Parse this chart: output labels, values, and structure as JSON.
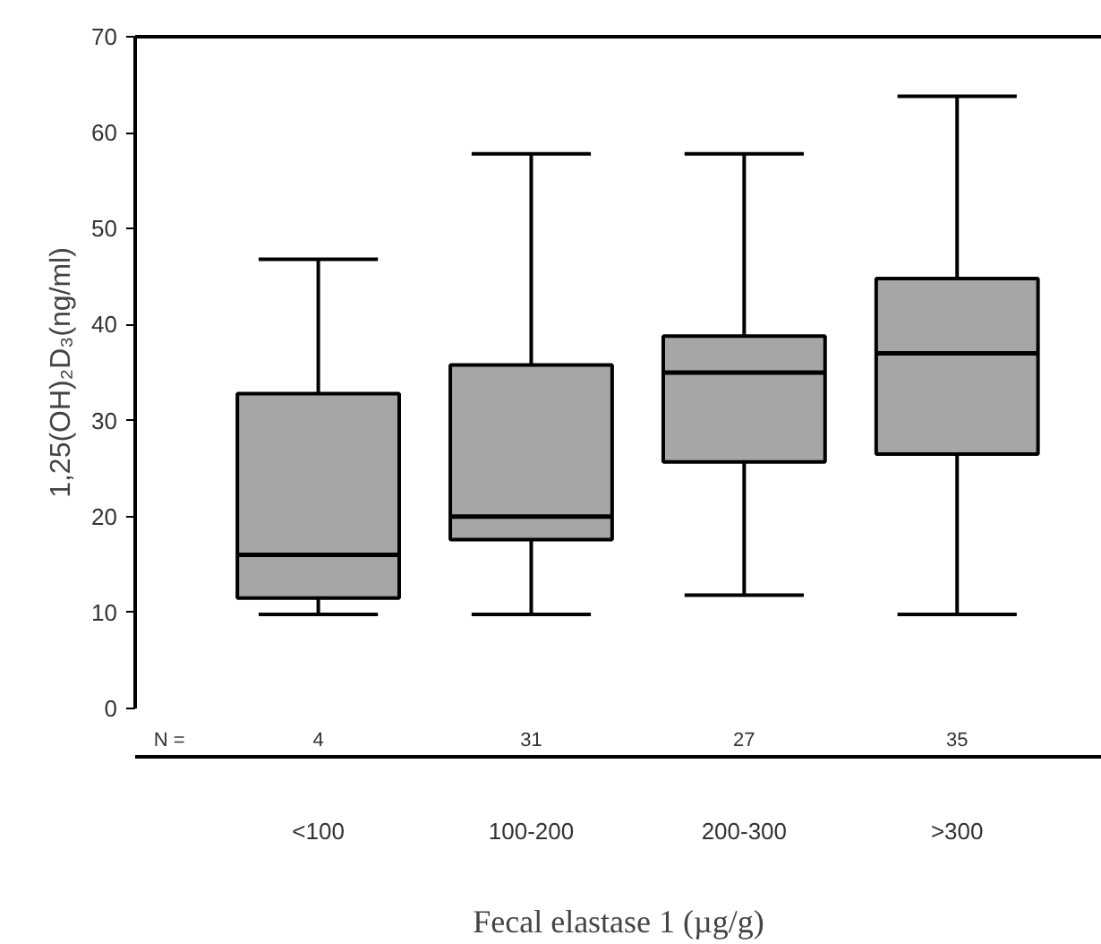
{
  "chart_data": {
    "type": "box",
    "xlabel": "Fecal elastase 1 (µg/g)",
    "ylabel": "1,25(OH)₂D₃(ng/ml)",
    "categories": [
      "<100",
      "100-200",
      "200-300",
      ">300"
    ],
    "boxes": [
      {
        "low": 9.8,
        "q1": 11.5,
        "median": 16,
        "q3": 32.8,
        "high": 46.8
      },
      {
        "low": 9.8,
        "q1": 17.6,
        "median": 20,
        "q3": 35.8,
        "high": 57.8
      },
      {
        "low": 11.8,
        "q1": 25.7,
        "median": 35,
        "q3": 38.8,
        "high": 57.8
      },
      {
        "low": 9.8,
        "q1": 26.5,
        "median": 37,
        "q3": 44.8,
        "high": 63.8
      }
    ],
    "color": "#a6a6a6",
    "ylim": [
      0,
      70
    ],
    "yticks": [
      0,
      10,
      20,
      30,
      40,
      50,
      60,
      70
    ],
    "grid": false,
    "annotations": [
      "N =",
      "4",
      "31",
      "27",
      "35"
    ]
  }
}
